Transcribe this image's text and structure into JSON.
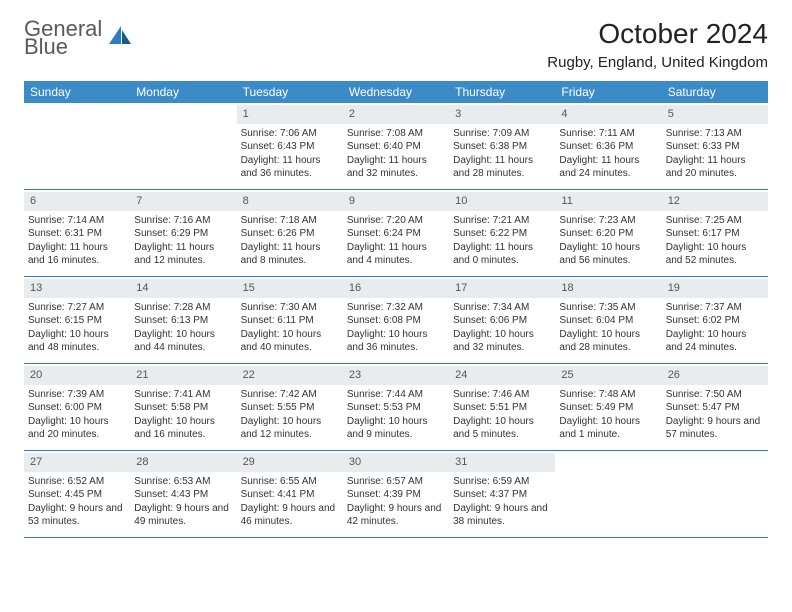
{
  "logo": {
    "line1": "General",
    "line2": "Blue"
  },
  "title": "October 2024",
  "location": "Rugby, England, United Kingdom",
  "weekdays": [
    "Sunday",
    "Monday",
    "Tuesday",
    "Wednesday",
    "Thursday",
    "Friday",
    "Saturday"
  ],
  "colors": {
    "header_bg": "#3b8bc9",
    "border": "#2d7cc0",
    "daynum_bg": "#e9ecef",
    "text": "#333333",
    "logo_gray": "#5a5a5a",
    "logo_blue": "#2d7cc0"
  },
  "weeks": [
    [
      {
        "empty": true
      },
      {
        "empty": true
      },
      {
        "num": "1",
        "sunrise": "Sunrise: 7:06 AM",
        "sunset": "Sunset: 6:43 PM",
        "daylight": "Daylight: 11 hours and 36 minutes."
      },
      {
        "num": "2",
        "sunrise": "Sunrise: 7:08 AM",
        "sunset": "Sunset: 6:40 PM",
        "daylight": "Daylight: 11 hours and 32 minutes."
      },
      {
        "num": "3",
        "sunrise": "Sunrise: 7:09 AM",
        "sunset": "Sunset: 6:38 PM",
        "daylight": "Daylight: 11 hours and 28 minutes."
      },
      {
        "num": "4",
        "sunrise": "Sunrise: 7:11 AM",
        "sunset": "Sunset: 6:36 PM",
        "daylight": "Daylight: 11 hours and 24 minutes."
      },
      {
        "num": "5",
        "sunrise": "Sunrise: 7:13 AM",
        "sunset": "Sunset: 6:33 PM",
        "daylight": "Daylight: 11 hours and 20 minutes."
      }
    ],
    [
      {
        "num": "6",
        "sunrise": "Sunrise: 7:14 AM",
        "sunset": "Sunset: 6:31 PM",
        "daylight": "Daylight: 11 hours and 16 minutes."
      },
      {
        "num": "7",
        "sunrise": "Sunrise: 7:16 AM",
        "sunset": "Sunset: 6:29 PM",
        "daylight": "Daylight: 11 hours and 12 minutes."
      },
      {
        "num": "8",
        "sunrise": "Sunrise: 7:18 AM",
        "sunset": "Sunset: 6:26 PM",
        "daylight": "Daylight: 11 hours and 8 minutes."
      },
      {
        "num": "9",
        "sunrise": "Sunrise: 7:20 AM",
        "sunset": "Sunset: 6:24 PM",
        "daylight": "Daylight: 11 hours and 4 minutes."
      },
      {
        "num": "10",
        "sunrise": "Sunrise: 7:21 AM",
        "sunset": "Sunset: 6:22 PM",
        "daylight": "Daylight: 11 hours and 0 minutes."
      },
      {
        "num": "11",
        "sunrise": "Sunrise: 7:23 AM",
        "sunset": "Sunset: 6:20 PM",
        "daylight": "Daylight: 10 hours and 56 minutes."
      },
      {
        "num": "12",
        "sunrise": "Sunrise: 7:25 AM",
        "sunset": "Sunset: 6:17 PM",
        "daylight": "Daylight: 10 hours and 52 minutes."
      }
    ],
    [
      {
        "num": "13",
        "sunrise": "Sunrise: 7:27 AM",
        "sunset": "Sunset: 6:15 PM",
        "daylight": "Daylight: 10 hours and 48 minutes."
      },
      {
        "num": "14",
        "sunrise": "Sunrise: 7:28 AM",
        "sunset": "Sunset: 6:13 PM",
        "daylight": "Daylight: 10 hours and 44 minutes."
      },
      {
        "num": "15",
        "sunrise": "Sunrise: 7:30 AM",
        "sunset": "Sunset: 6:11 PM",
        "daylight": "Daylight: 10 hours and 40 minutes."
      },
      {
        "num": "16",
        "sunrise": "Sunrise: 7:32 AM",
        "sunset": "Sunset: 6:08 PM",
        "daylight": "Daylight: 10 hours and 36 minutes."
      },
      {
        "num": "17",
        "sunrise": "Sunrise: 7:34 AM",
        "sunset": "Sunset: 6:06 PM",
        "daylight": "Daylight: 10 hours and 32 minutes."
      },
      {
        "num": "18",
        "sunrise": "Sunrise: 7:35 AM",
        "sunset": "Sunset: 6:04 PM",
        "daylight": "Daylight: 10 hours and 28 minutes."
      },
      {
        "num": "19",
        "sunrise": "Sunrise: 7:37 AM",
        "sunset": "Sunset: 6:02 PM",
        "daylight": "Daylight: 10 hours and 24 minutes."
      }
    ],
    [
      {
        "num": "20",
        "sunrise": "Sunrise: 7:39 AM",
        "sunset": "Sunset: 6:00 PM",
        "daylight": "Daylight: 10 hours and 20 minutes."
      },
      {
        "num": "21",
        "sunrise": "Sunrise: 7:41 AM",
        "sunset": "Sunset: 5:58 PM",
        "daylight": "Daylight: 10 hours and 16 minutes."
      },
      {
        "num": "22",
        "sunrise": "Sunrise: 7:42 AM",
        "sunset": "Sunset: 5:55 PM",
        "daylight": "Daylight: 10 hours and 12 minutes."
      },
      {
        "num": "23",
        "sunrise": "Sunrise: 7:44 AM",
        "sunset": "Sunset: 5:53 PM",
        "daylight": "Daylight: 10 hours and 9 minutes."
      },
      {
        "num": "24",
        "sunrise": "Sunrise: 7:46 AM",
        "sunset": "Sunset: 5:51 PM",
        "daylight": "Daylight: 10 hours and 5 minutes."
      },
      {
        "num": "25",
        "sunrise": "Sunrise: 7:48 AM",
        "sunset": "Sunset: 5:49 PM",
        "daylight": "Daylight: 10 hours and 1 minute."
      },
      {
        "num": "26",
        "sunrise": "Sunrise: 7:50 AM",
        "sunset": "Sunset: 5:47 PM",
        "daylight": "Daylight: 9 hours and 57 minutes."
      }
    ],
    [
      {
        "num": "27",
        "sunrise": "Sunrise: 6:52 AM",
        "sunset": "Sunset: 4:45 PM",
        "daylight": "Daylight: 9 hours and 53 minutes."
      },
      {
        "num": "28",
        "sunrise": "Sunrise: 6:53 AM",
        "sunset": "Sunset: 4:43 PM",
        "daylight": "Daylight: 9 hours and 49 minutes."
      },
      {
        "num": "29",
        "sunrise": "Sunrise: 6:55 AM",
        "sunset": "Sunset: 4:41 PM",
        "daylight": "Daylight: 9 hours and 46 minutes."
      },
      {
        "num": "30",
        "sunrise": "Sunrise: 6:57 AM",
        "sunset": "Sunset: 4:39 PM",
        "daylight": "Daylight: 9 hours and 42 minutes."
      },
      {
        "num": "31",
        "sunrise": "Sunrise: 6:59 AM",
        "sunset": "Sunset: 4:37 PM",
        "daylight": "Daylight: 9 hours and 38 minutes."
      },
      {
        "empty": true
      },
      {
        "empty": true
      }
    ]
  ]
}
